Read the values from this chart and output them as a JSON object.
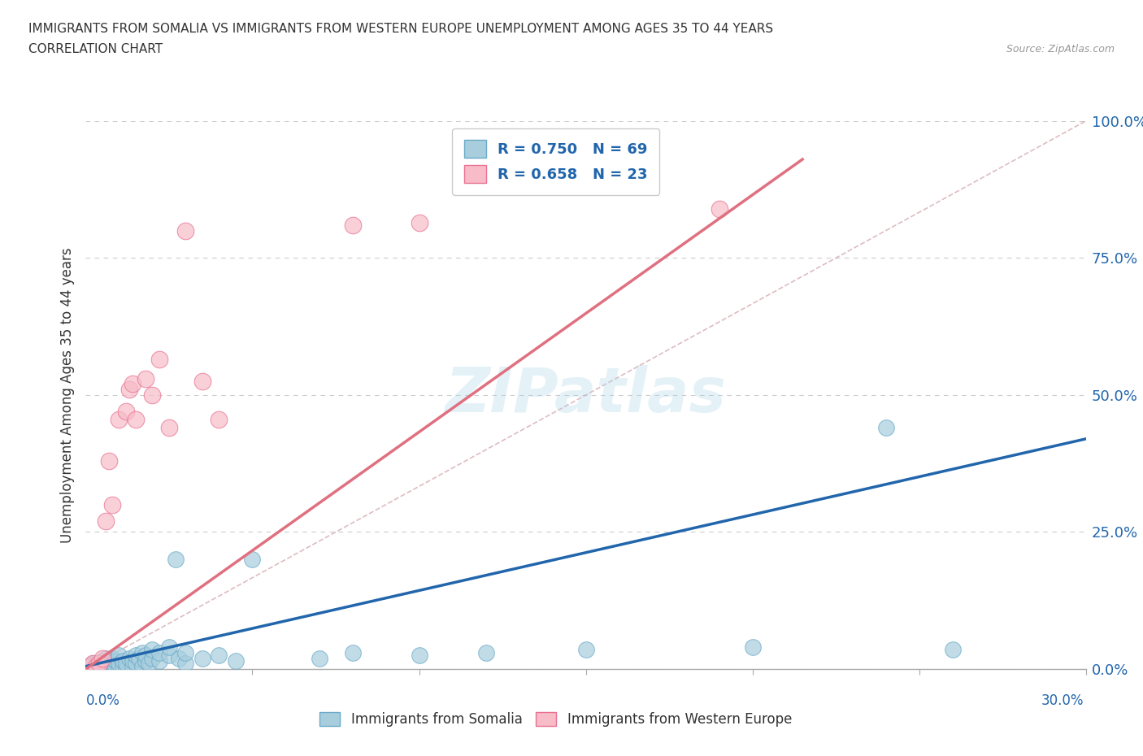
{
  "title_line1": "IMMIGRANTS FROM SOMALIA VS IMMIGRANTS FROM WESTERN EUROPE UNEMPLOYMENT AMONG AGES 35 TO 44 YEARS",
  "title_line2": "CORRELATION CHART",
  "source": "Source: ZipAtlas.com",
  "xlabel_bottom_left": "0.0%",
  "xlabel_bottom_right": "30.0%",
  "ylabel": "Unemployment Among Ages 35 to 44 years",
  "ytick_labels": [
    "0.0%",
    "25.0%",
    "50.0%",
    "75.0%",
    "100.0%"
  ],
  "ytick_values": [
    0.0,
    0.25,
    0.5,
    0.75,
    1.0
  ],
  "xmin": 0.0,
  "xmax": 0.3,
  "ymin": 0.0,
  "ymax": 1.0,
  "somalia_color": "#A8CEDE",
  "somalia_edge_color": "#6AAAC8",
  "western_europe_color": "#F7BCC8",
  "western_europe_edge_color": "#E87090",
  "somalia_line_color": "#2166AC",
  "western_europe_line_color": "#E07080",
  "ref_line_color": "#D0A0A8",
  "R_somalia": 0.75,
  "N_somalia": 69,
  "R_western_europe": 0.658,
  "N_western_europe": 23,
  "grid_color": "#CCCCCC",
  "background_color": "#FFFFFF",
  "watermark": "ZIPatlas",
  "legend_somalia": "Immigrants from Somalia",
  "legend_western_europe": "Immigrants from Western Europe",
  "somalia_trend": [
    0.0,
    0.3,
    0.005,
    0.42
  ],
  "western_europe_trend": [
    0.0,
    0.215,
    0.0,
    0.93
  ],
  "somalia_points": [
    [
      0.0,
      0.0
    ],
    [
      0.001,
      0.0
    ],
    [
      0.001,
      0.005
    ],
    [
      0.002,
      0.0
    ],
    [
      0.002,
      0.005
    ],
    [
      0.002,
      0.01
    ],
    [
      0.003,
      0.0
    ],
    [
      0.003,
      0.005
    ],
    [
      0.003,
      0.01
    ],
    [
      0.004,
      0.0
    ],
    [
      0.004,
      0.005
    ],
    [
      0.004,
      0.01
    ],
    [
      0.005,
      0.0
    ],
    [
      0.005,
      0.005
    ],
    [
      0.005,
      0.008
    ],
    [
      0.005,
      0.015
    ],
    [
      0.006,
      0.0
    ],
    [
      0.006,
      0.005
    ],
    [
      0.006,
      0.01
    ],
    [
      0.006,
      0.02
    ],
    [
      0.007,
      0.0
    ],
    [
      0.007,
      0.005
    ],
    [
      0.007,
      0.01
    ],
    [
      0.007,
      0.015
    ],
    [
      0.008,
      0.0
    ],
    [
      0.008,
      0.01
    ],
    [
      0.008,
      0.02
    ],
    [
      0.009,
      0.005
    ],
    [
      0.009,
      0.015
    ],
    [
      0.01,
      0.0
    ],
    [
      0.01,
      0.01
    ],
    [
      0.01,
      0.025
    ],
    [
      0.011,
      0.005
    ],
    [
      0.011,
      0.015
    ],
    [
      0.012,
      0.0
    ],
    [
      0.012,
      0.01
    ],
    [
      0.013,
      0.02
    ],
    [
      0.014,
      0.005
    ],
    [
      0.014,
      0.015
    ],
    [
      0.015,
      0.01
    ],
    [
      0.015,
      0.025
    ],
    [
      0.016,
      0.02
    ],
    [
      0.017,
      0.005
    ],
    [
      0.017,
      0.03
    ],
    [
      0.018,
      0.015
    ],
    [
      0.018,
      0.025
    ],
    [
      0.019,
      0.01
    ],
    [
      0.02,
      0.02
    ],
    [
      0.02,
      0.035
    ],
    [
      0.022,
      0.015
    ],
    [
      0.022,
      0.03
    ],
    [
      0.025,
      0.025
    ],
    [
      0.025,
      0.04
    ],
    [
      0.027,
      0.2
    ],
    [
      0.028,
      0.02
    ],
    [
      0.03,
      0.01
    ],
    [
      0.03,
      0.03
    ],
    [
      0.035,
      0.02
    ],
    [
      0.04,
      0.025
    ],
    [
      0.045,
      0.015
    ],
    [
      0.05,
      0.2
    ],
    [
      0.07,
      0.02
    ],
    [
      0.08,
      0.03
    ],
    [
      0.1,
      0.025
    ],
    [
      0.12,
      0.03
    ],
    [
      0.15,
      0.035
    ],
    [
      0.2,
      0.04
    ],
    [
      0.24,
      0.44
    ],
    [
      0.26,
      0.035
    ]
  ],
  "western_europe_points": [
    [
      0.001,
      0.005
    ],
    [
      0.002,
      0.01
    ],
    [
      0.003,
      0.005
    ],
    [
      0.004,
      0.01
    ],
    [
      0.005,
      0.02
    ],
    [
      0.006,
      0.27
    ],
    [
      0.007,
      0.38
    ],
    [
      0.008,
      0.3
    ],
    [
      0.01,
      0.455
    ],
    [
      0.012,
      0.47
    ],
    [
      0.013,
      0.51
    ],
    [
      0.014,
      0.52
    ],
    [
      0.015,
      0.455
    ],
    [
      0.018,
      0.53
    ],
    [
      0.02,
      0.5
    ],
    [
      0.022,
      0.565
    ],
    [
      0.025,
      0.44
    ],
    [
      0.03,
      0.8
    ],
    [
      0.035,
      0.525
    ],
    [
      0.04,
      0.455
    ],
    [
      0.08,
      0.81
    ],
    [
      0.1,
      0.815
    ],
    [
      0.19,
      0.84
    ]
  ]
}
